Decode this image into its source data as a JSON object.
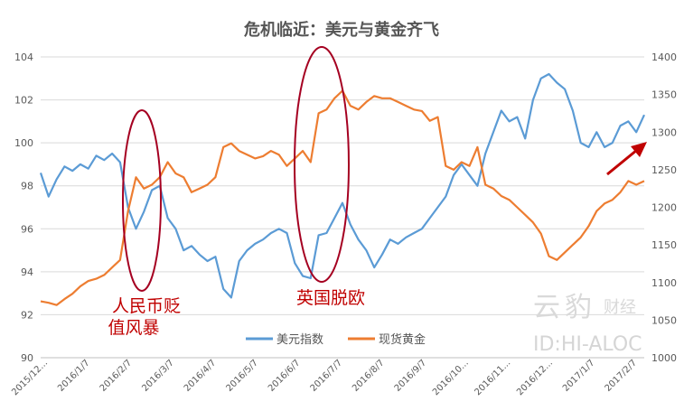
{
  "chart_data": {
    "type": "line",
    "title": "危机临近：美元与黄金齐飞",
    "x_tick_labels": [
      "2015/12...",
      "2016/1/7",
      "2016/2/7",
      "2016/3/7",
      "2016/4/7",
      "2016/5/7",
      "2016/6/7",
      "2016/7/7",
      "2016/8/7",
      "2016/9/7",
      "2016/10...",
      "2016/11...",
      "2016/12...",
      "2017/1/7",
      "2017/2/7"
    ],
    "left_axis": {
      "ylim": [
        90,
        104
      ],
      "ticks": [
        90,
        92,
        94,
        96,
        98,
        100,
        102,
        104
      ]
    },
    "right_axis": {
      "ylim": [
        1000,
        1400
      ],
      "ticks": [
        1000,
        1050,
        1100,
        1150,
        1200,
        1250,
        1300,
        1350,
        1400
      ]
    },
    "legend_position": "bottom-center",
    "series": [
      {
        "name": "美元指数",
        "axis": "left",
        "color": "#5b9bd5",
        "x": [
          0,
          1,
          2,
          3,
          4,
          5,
          6,
          7,
          8,
          9,
          10,
          11,
          12,
          13,
          14,
          15,
          16,
          17,
          18,
          19,
          20,
          21,
          22,
          23,
          24,
          25,
          26,
          27,
          28,
          29,
          30,
          31,
          32,
          33,
          34,
          35,
          36,
          37,
          38,
          39,
          40,
          41,
          42,
          43,
          44,
          45,
          46,
          47,
          48,
          49,
          50,
          51,
          52,
          53,
          54,
          55,
          56,
          57,
          58,
          59,
          60,
          61,
          62,
          63,
          64,
          65,
          66,
          67,
          68,
          69,
          70,
          71,
          72,
          73,
          74,
          75,
          76
        ],
        "values": [
          98.6,
          97.5,
          98.3,
          98.9,
          98.7,
          99.0,
          98.8,
          99.4,
          99.2,
          99.5,
          99.1,
          97.0,
          96.0,
          96.8,
          97.8,
          98.0,
          96.5,
          96.0,
          95.0,
          95.2,
          94.8,
          94.5,
          94.7,
          93.2,
          92.8,
          94.5,
          95.0,
          95.3,
          95.5,
          95.8,
          96.0,
          95.8,
          94.4,
          93.8,
          93.7,
          95.7,
          95.8,
          96.5,
          97.2,
          96.2,
          95.5,
          95.0,
          94.2,
          94.8,
          95.5,
          95.3,
          95.6,
          95.8,
          96.0,
          96.5,
          97.0,
          97.5,
          98.5,
          99.0,
          98.5,
          98.0,
          99.5,
          100.5,
          101.5,
          101.0,
          101.2,
          100.2,
          102.0,
          103.0,
          103.2,
          102.8,
          102.5,
          101.5,
          100.0,
          99.8,
          100.5,
          99.8,
          100.0,
          100.8,
          101.0,
          100.5,
          101.3
        ]
      },
      {
        "name": "现货黄金",
        "axis": "right",
        "color": "#ed7d31",
        "x": [
          0,
          1,
          2,
          3,
          4,
          5,
          6,
          7,
          8,
          9,
          10,
          11,
          12,
          13,
          14,
          15,
          16,
          17,
          18,
          19,
          20,
          21,
          22,
          23,
          24,
          25,
          26,
          27,
          28,
          29,
          30,
          31,
          32,
          33,
          34,
          35,
          36,
          37,
          38,
          39,
          40,
          41,
          42,
          43,
          44,
          45,
          46,
          47,
          48,
          49,
          50,
          51,
          52,
          53,
          54,
          55,
          56,
          57,
          58,
          59,
          60,
          61,
          62,
          63,
          64,
          65,
          66,
          67,
          68,
          69,
          70,
          71,
          72,
          73,
          74,
          75,
          76
        ],
        "values": [
          1075,
          1073,
          1070,
          1078,
          1085,
          1095,
          1102,
          1105,
          1110,
          1120,
          1130,
          1195,
          1240,
          1225,
          1230,
          1240,
          1260,
          1245,
          1240,
          1220,
          1225,
          1230,
          1240,
          1280,
          1285,
          1275,
          1270,
          1265,
          1268,
          1275,
          1270,
          1255,
          1265,
          1275,
          1260,
          1325,
          1330,
          1345,
          1355,
          1335,
          1330,
          1340,
          1348,
          1345,
          1345,
          1340,
          1335,
          1330,
          1328,
          1315,
          1320,
          1255,
          1250,
          1260,
          1255,
          1280,
          1230,
          1225,
          1215,
          1210,
          1200,
          1190,
          1180,
          1165,
          1135,
          1130,
          1140,
          1150,
          1160,
          1175,
          1195,
          1205,
          1210,
          1220,
          1235,
          1230,
          1235
        ]
      }
    ],
    "annotations": [
      {
        "lines": [
          "人民币贬",
          "值风暴"
        ]
      },
      {
        "lines": [
          "英国脱欧"
        ]
      }
    ],
    "watermark": {
      "logo_char1": "云",
      "logo_char2": "豹",
      "logo_sub": "财经",
      "id": "ID:HI-ALOC"
    }
  }
}
